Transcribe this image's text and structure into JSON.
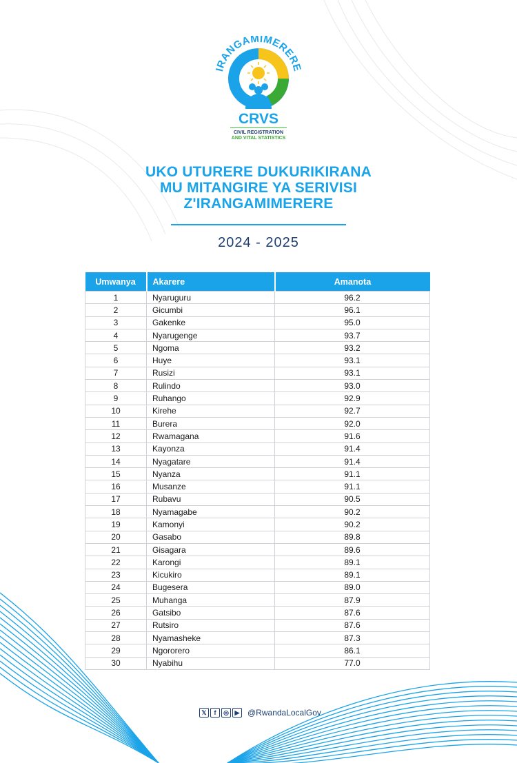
{
  "logo": {
    "arc_text": "IRANGAMIMERERE",
    "acronym": "CRVS",
    "subtitle_line1": "CIVIL REGISTRATION",
    "subtitle_line2": "AND VITAL STATISTICS"
  },
  "title": {
    "line1": "UKO UTURERE DUKURIKIRANA",
    "line2": "MU MITANGIRE YA SERIVISI",
    "line3": "Z'IRANGAMIMERERE"
  },
  "year": "2024 - 2025",
  "table": {
    "headers": [
      "Umwanya",
      "Akarere",
      "Amanota"
    ],
    "rows": [
      [
        "1",
        "Nyaruguru",
        "96.2"
      ],
      [
        "2",
        "Gicumbi",
        "96.1"
      ],
      [
        "3",
        "Gakenke",
        "95.0"
      ],
      [
        "4",
        "Nyarugenge",
        "93.7"
      ],
      [
        "5",
        "Ngoma",
        "93.2"
      ],
      [
        "6",
        "Huye",
        "93.1"
      ],
      [
        "7",
        "Rusizi",
        "93.1"
      ],
      [
        "8",
        "Rulindo",
        "93.0"
      ],
      [
        "9",
        "Ruhango",
        "92.9"
      ],
      [
        "10",
        "Kirehe",
        "92.7"
      ],
      [
        "11",
        "Burera",
        "92.0"
      ],
      [
        "12",
        "Rwamagana",
        "91.6"
      ],
      [
        "13",
        "Kayonza",
        "91.4"
      ],
      [
        "14",
        "Nyagatare",
        "91.4"
      ],
      [
        "15",
        "Nyanza",
        "91.1"
      ],
      [
        "16",
        "Musanze",
        "91.1"
      ],
      [
        "17",
        "Rubavu",
        "90.5"
      ],
      [
        "18",
        "Nyamagabe",
        "90.2"
      ],
      [
        "19",
        "Kamonyi",
        "90.2"
      ],
      [
        "20",
        "Gasabo",
        "89.8"
      ],
      [
        "21",
        "Gisagara",
        "89.6"
      ],
      [
        "22",
        "Karongi",
        "89.1"
      ],
      [
        "23",
        "Kicukiro",
        "89.1"
      ],
      [
        "24",
        "Bugesera",
        "89.0"
      ],
      [
        "25",
        "Muhanga",
        "87.9"
      ],
      [
        "26",
        "Gatsibo",
        "87.6"
      ],
      [
        "27",
        "Rutsiro",
        "87.6"
      ],
      [
        "28",
        "Nyamasheke",
        "87.3"
      ],
      [
        "29",
        "Ngororero",
        "86.1"
      ],
      [
        "30",
        "Nyabihu",
        "77.0"
      ]
    ]
  },
  "footer": {
    "icons": [
      "x-icon",
      "facebook-icon",
      "instagram-icon",
      "youtube-icon"
    ],
    "handle": "@RwandaLocalGov"
  },
  "colors": {
    "accent_blue": "#1aa3e8",
    "navy": "#1f3f73",
    "green": "#3aa935",
    "yellow": "#f6c41a"
  }
}
